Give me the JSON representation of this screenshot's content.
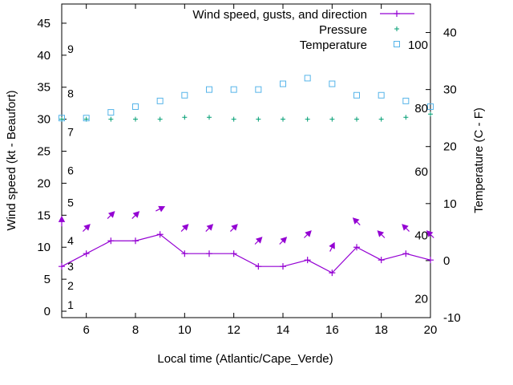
{
  "chart_data": {
    "type": "line",
    "xlabel": "Local time (Atlantic/Cape_Verde)",
    "ylabel": "Wind speed (kt - Beaufort)",
    "y2label": "Temperature (C - F)",
    "xlim": [
      5,
      20
    ],
    "ylim": [
      -1,
      48
    ],
    "y2lim": [
      -10,
      45
    ],
    "x_ticks": [
      6,
      8,
      10,
      12,
      14,
      16,
      18,
      20
    ],
    "y_ticks": [
      0,
      5,
      10,
      15,
      20,
      25,
      30,
      35,
      40,
      45
    ],
    "y2_ticks": [
      -10,
      0,
      10,
      20,
      30,
      40
    ],
    "beaufort_labels": [
      {
        "label": "1",
        "value": 1
      },
      {
        "label": "2",
        "value": 4
      },
      {
        "label": "3",
        "value": 7
      },
      {
        "label": "4",
        "value": 11
      },
      {
        "label": "5",
        "value": 17
      },
      {
        "label": "6",
        "value": 22
      },
      {
        "label": "7",
        "value": 28
      },
      {
        "label": "8",
        "value": 34
      },
      {
        "label": "9",
        "value": 41
      }
    ],
    "fahrenheit_labels": [
      {
        "label": "20",
        "value": -6.7
      },
      {
        "label": "40",
        "value": 4.4
      },
      {
        "label": "60",
        "value": 15.6
      },
      {
        "label": "80",
        "value": 26.7
      },
      {
        "label": "100",
        "value": 37.8
      }
    ],
    "series": [
      {
        "name": "Wind speed, gusts, and direction",
        "color": "#9400d3",
        "x": [
          5,
          6,
          7,
          8,
          9,
          10,
          11,
          12,
          13,
          14,
          15,
          16,
          17,
          18,
          19,
          20
        ],
        "values": [
          7,
          9,
          11,
          11,
          12,
          9,
          9,
          9,
          7,
          7,
          8,
          6,
          10,
          8,
          9,
          8
        ],
        "arrows": [
          {
            "x": 5,
            "y": 14.0,
            "dir": "n"
          },
          {
            "x": 6,
            "y": 13.0,
            "dir": "ne"
          },
          {
            "x": 7,
            "y": 15.0,
            "dir": "ne"
          },
          {
            "x": 8,
            "y": 15.0,
            "dir": "ne"
          },
          {
            "x": 9,
            "y": 16.0,
            "dir": "ene"
          },
          {
            "x": 10,
            "y": 13.0,
            "dir": "ne"
          },
          {
            "x": 11,
            "y": 13.0,
            "dir": "ne"
          },
          {
            "x": 12,
            "y": 13.0,
            "dir": "ne"
          },
          {
            "x": 13,
            "y": 11.0,
            "dir": "ne"
          },
          {
            "x": 14,
            "y": 11.0,
            "dir": "ne"
          },
          {
            "x": 15,
            "y": 12.0,
            "dir": "ne"
          },
          {
            "x": 16,
            "y": 10.0,
            "dir": "nne"
          },
          {
            "x": 17,
            "y": 14.0,
            "dir": "nw"
          },
          {
            "x": 18,
            "y": 12.0,
            "dir": "nw"
          },
          {
            "x": 19,
            "y": 13.0,
            "dir": "nw"
          },
          {
            "x": 20,
            "y": 12.0,
            "dir": "nw"
          }
        ]
      },
      {
        "name": "Pressure",
        "color": "#009e73",
        "x": [
          5,
          6,
          7,
          8,
          9,
          10,
          11,
          12,
          13,
          14,
          15,
          16,
          17,
          18,
          19,
          20
        ],
        "values": [
          30.0,
          30.0,
          30.0,
          30.0,
          30.0,
          30.3,
          30.3,
          30.0,
          30.0,
          30.0,
          30.0,
          30.0,
          30.0,
          30.0,
          30.3,
          30.8
        ]
      },
      {
        "name": "Temperature",
        "color": "#56b4e9",
        "axis": "y2",
        "x": [
          5,
          6,
          7,
          8,
          9,
          10,
          11,
          12,
          13,
          14,
          15,
          16,
          17,
          18,
          19,
          20
        ],
        "values": [
          25,
          25,
          26,
          27,
          28,
          29,
          30,
          30,
          30,
          31,
          32,
          31,
          29,
          29,
          28,
          27
        ]
      }
    ]
  }
}
